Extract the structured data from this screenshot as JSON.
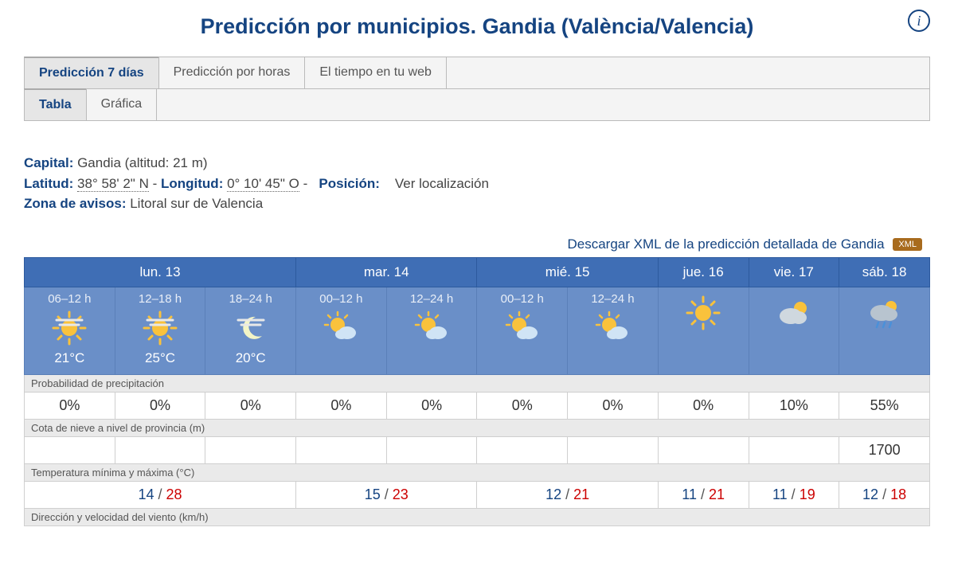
{
  "title": "Predicción por municipios. Gandia (València/Valencia)",
  "tabs1": [
    {
      "label": "Predicción 7 días",
      "active": true
    },
    {
      "label": "Predicción por horas",
      "active": false
    },
    {
      "label": "El tiempo en tu web",
      "active": false
    }
  ],
  "tabs2": [
    {
      "label": "Tabla",
      "active": true
    },
    {
      "label": "Gráfica",
      "active": false
    }
  ],
  "meta": {
    "capital_label": "Capital",
    "capital": "Gandia (altitud: 21 m)",
    "lat_label": "Latitud",
    "lat": "38° 58' 2\" N",
    "lon_label": "Longitud",
    "lon": "0° 10' 45\" O",
    "pos_label": "Posición",
    "pos_link": "Ver localización",
    "zone_label": "Zona de avisos",
    "zone": "Litoral sur de Valencia"
  },
  "xml_text": "Descargar XML de la predicción detallada de Gandia",
  "xml_badge": "XML",
  "days": [
    {
      "label": "lun. 13",
      "periods": 3
    },
    {
      "label": "mar. 14",
      "periods": 2
    },
    {
      "label": "mié. 15",
      "periods": 2
    },
    {
      "label": "jue. 16",
      "periods": 1
    },
    {
      "label": "vie. 17",
      "periods": 1
    },
    {
      "label": "sáb. 18",
      "periods": 1
    }
  ],
  "periods": [
    {
      "label": "06–12 h",
      "icon": "sun-haze",
      "temp": "21°C"
    },
    {
      "label": "12–18 h",
      "icon": "sun-haze",
      "temp": "25°C"
    },
    {
      "label": "18–24 h",
      "icon": "moon-haze",
      "temp": "20°C"
    },
    {
      "label": "00–12 h",
      "icon": "sun-cloud",
      "temp": ""
    },
    {
      "label": "12–24 h",
      "icon": "sun-cloud",
      "temp": ""
    },
    {
      "label": "00–12 h",
      "icon": "sun-cloud",
      "temp": ""
    },
    {
      "label": "12–24 h",
      "icon": "sun-cloud",
      "temp": ""
    },
    {
      "label": "",
      "icon": "sun",
      "temp": ""
    },
    {
      "label": "",
      "icon": "cloud-sun",
      "temp": ""
    },
    {
      "label": "",
      "icon": "cloud-rain",
      "temp": ""
    }
  ],
  "sections": {
    "precip_label": "Probabilidad de precipitación",
    "precip": [
      "0%",
      "0%",
      "0%",
      "0%",
      "0%",
      "0%",
      "0%",
      "0%",
      "10%",
      "55%"
    ],
    "snow_label": "Cota de nieve a nivel de provincia (m)",
    "snow": [
      "",
      "",
      "",
      "",
      "",
      "",
      "",
      "",
      "",
      "1700"
    ],
    "temp_label": "Temperatura mínima y máxima (°C)",
    "temps": [
      {
        "min": "14",
        "max": "28",
        "span": 3
      },
      {
        "min": "15",
        "max": "23",
        "span": 2
      },
      {
        "min": "12",
        "max": "21",
        "span": 2
      },
      {
        "min": "11",
        "max": "21",
        "span": 1
      },
      {
        "min": "11",
        "max": "19",
        "span": 1
      },
      {
        "min": "12",
        "max": "18",
        "span": 1
      }
    ],
    "wind_label": "Dirección y velocidad del viento (km/h)"
  },
  "colors": {
    "header_blue": "#3f6eb5",
    "cell_blue": "#6a8fc8",
    "brand": "#154481",
    "xml_badge": "#a86b1e"
  }
}
